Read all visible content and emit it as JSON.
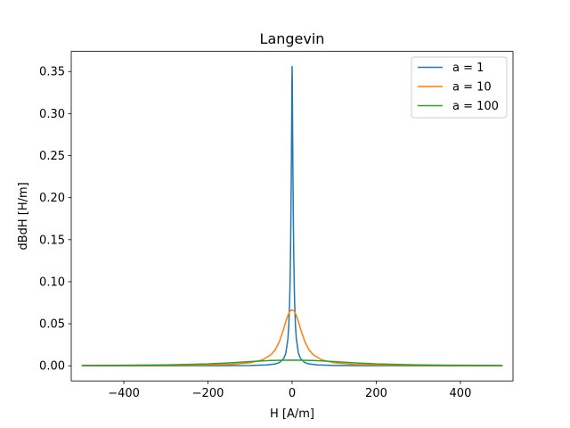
{
  "chart_data": {
    "type": "line",
    "title": "Langevin",
    "xlabel": "H [A/m]",
    "ylabel": "dBdH [H/m]",
    "xlim": [
      -525,
      525
    ],
    "ylim": [
      -0.018,
      0.374
    ],
    "xticks": [
      -400,
      -200,
      0,
      200,
      400
    ],
    "xtick_labels": [
      "−400",
      "−200",
      "0",
      "200",
      "400"
    ],
    "yticks": [
      0.0,
      0.05,
      0.1,
      0.15,
      0.2,
      0.25,
      0.3,
      0.35
    ],
    "ytick_labels": [
      "0.00",
      "0.05",
      "0.10",
      "0.15",
      "0.20",
      "0.25",
      "0.30",
      "0.35"
    ],
    "grid": false,
    "legend_position": "top-right",
    "series": [
      {
        "name": "a = 1",
        "color": "#1f77b4",
        "x": [
          -500,
          -300,
          -200,
          -100,
          -60,
          -40,
          -30,
          -20,
          -15,
          -10,
          -8,
          -6,
          -5,
          -4,
          -3,
          -2,
          -1.5,
          -1,
          -0.5,
          0,
          0.5,
          1,
          1.5,
          2,
          3,
          4,
          5,
          6,
          8,
          10,
          15,
          20,
          30,
          40,
          60,
          100,
          200,
          300,
          500
        ],
        "y": [
          0.0,
          0.0,
          0.0001,
          0.0004,
          0.001,
          0.0022,
          0.0039,
          0.0086,
          0.0149,
          0.032,
          0.0473,
          0.0746,
          0.097,
          0.128,
          0.169,
          0.224,
          0.258,
          0.296,
          0.336,
          0.356,
          0.336,
          0.296,
          0.258,
          0.224,
          0.169,
          0.128,
          0.097,
          0.0746,
          0.0473,
          0.032,
          0.0149,
          0.0086,
          0.0039,
          0.0022,
          0.001,
          0.0004,
          0.0001,
          0.0,
          0.0
        ]
      },
      {
        "name": "a = 10",
        "color": "#ff7f0e",
        "x": [
          -500,
          -300,
          -200,
          -150,
          -100,
          -70,
          -50,
          -40,
          -30,
          -20,
          -15,
          -10,
          -5,
          0,
          5,
          10,
          15,
          20,
          30,
          40,
          50,
          70,
          100,
          150,
          200,
          300,
          500
        ],
        "y": [
          0.0001,
          0.0004,
          0.0009,
          0.0016,
          0.0035,
          0.0071,
          0.0132,
          0.0191,
          0.029,
          0.0439,
          0.0527,
          0.06,
          0.065,
          0.0667,
          0.065,
          0.06,
          0.0527,
          0.0439,
          0.029,
          0.0191,
          0.0132,
          0.0071,
          0.0035,
          0.0016,
          0.0009,
          0.0004,
          0.0001
        ]
      },
      {
        "name": "a = 100",
        "color": "#2ca02c",
        "x": [
          -500,
          -400,
          -300,
          -200,
          -150,
          -100,
          -50,
          0,
          50,
          100,
          150,
          200,
          300,
          400,
          500
        ],
        "y": [
          0.0004,
          0.0006,
          0.0011,
          0.0022,
          0.0034,
          0.005,
          0.0064,
          0.0067,
          0.0064,
          0.005,
          0.0034,
          0.0022,
          0.0011,
          0.0006,
          0.0004
        ]
      }
    ]
  }
}
